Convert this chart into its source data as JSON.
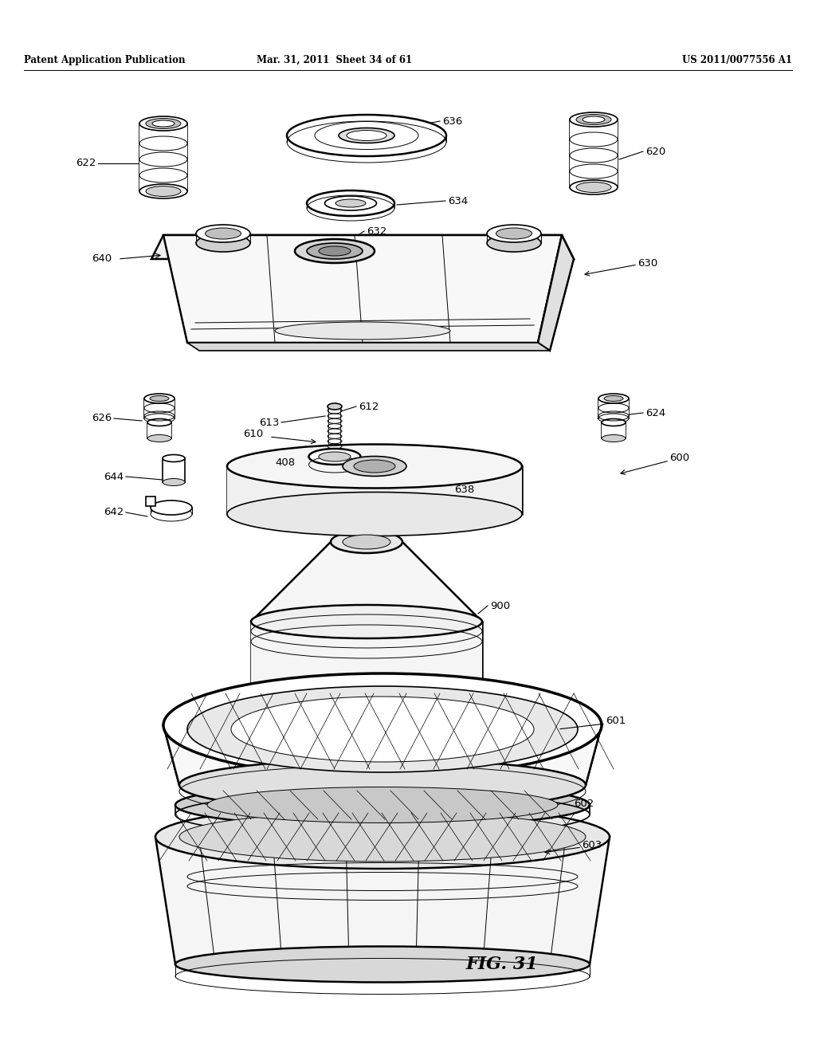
{
  "header_left": "Patent Application Publication",
  "header_mid": "Mar. 31, 2011  Sheet 34 of 61",
  "header_right": "US 2011/0077556 A1",
  "figure_label": "FIG. 31",
  "bg_color": "#ffffff",
  "line_color": "#000000",
  "fig_width": 10.24,
  "fig_height": 13.2,
  "dpi": 100
}
